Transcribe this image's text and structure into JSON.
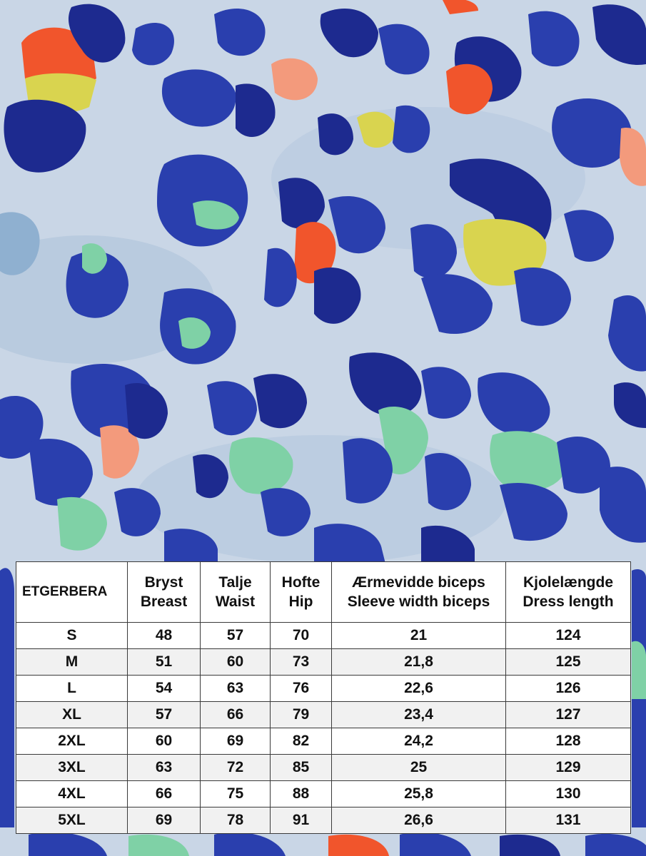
{
  "colors": {
    "background": "#c9d6e6",
    "spot_dark": "#1d2a8f",
    "spot_blue": "#2a3fae",
    "accent_orange": "#f1552c",
    "accent_pink": "#f39a7c",
    "accent_yellow": "#d9d44f",
    "accent_green": "#7fd1a6",
    "table_bg": "#ffffff",
    "table_stripe": "#f1f1f1"
  },
  "table": {
    "model": "ETGERBERA",
    "columns": [
      {
        "line1": "Bryst",
        "line2": "Breast"
      },
      {
        "line1": "Talje",
        "line2": "Waist"
      },
      {
        "line1": "Hofte",
        "line2": "Hip"
      },
      {
        "line1": "Ærmevidde biceps",
        "line2": "Sleeve width biceps"
      },
      {
        "line1": "Kjolelængde",
        "line2": "Dress length"
      }
    ],
    "rows": [
      {
        "size": "S",
        "values": [
          "48",
          "57",
          "70",
          "21",
          "124"
        ]
      },
      {
        "size": "M",
        "values": [
          "51",
          "60",
          "73",
          "21,8",
          "125"
        ]
      },
      {
        "size": "L",
        "values": [
          "54",
          "63",
          "76",
          "22,6",
          "126"
        ]
      },
      {
        "size": "XL",
        "values": [
          "57",
          "66",
          "79",
          "23,4",
          "127"
        ]
      },
      {
        "size": "2XL",
        "values": [
          "60",
          "69",
          "82",
          "24,2",
          "128"
        ]
      },
      {
        "size": "3XL",
        "values": [
          "63",
          "72",
          "85",
          "25",
          "129"
        ]
      },
      {
        "size": "4XL",
        "values": [
          "66",
          "75",
          "88",
          "25,8",
          "130"
        ]
      },
      {
        "size": "5XL",
        "values": [
          "69",
          "78",
          "91",
          "26,6",
          "131"
        ]
      }
    ]
  }
}
